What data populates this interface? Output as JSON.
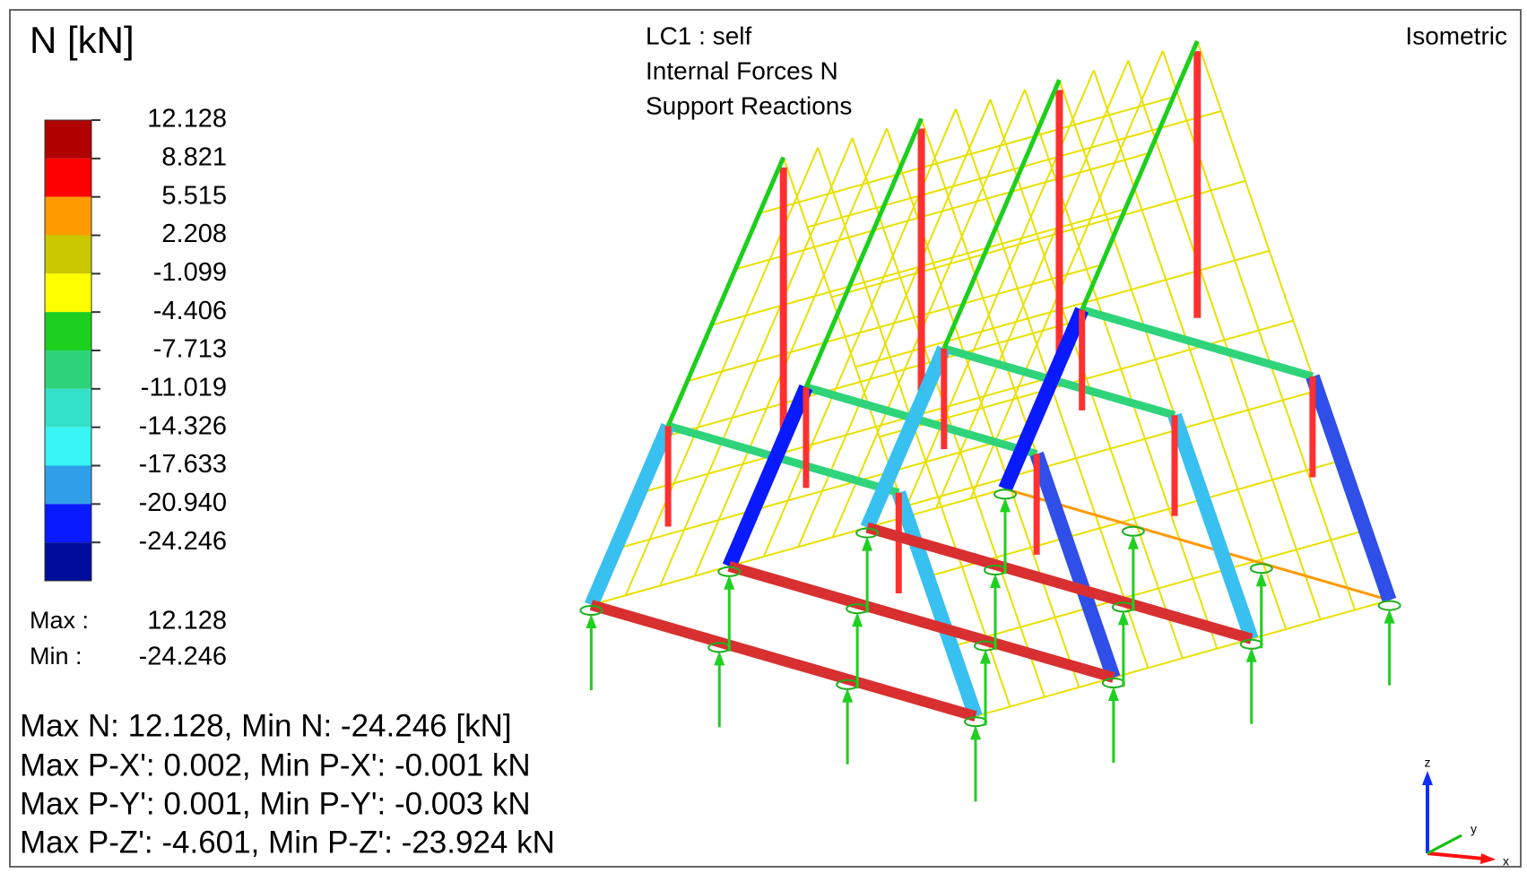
{
  "legend": {
    "title": "N [kN]",
    "values": [
      "12.128",
      "8.821",
      "5.515",
      "2.208",
      "-1.099",
      "-4.406",
      "-7.713",
      "-11.019",
      "-14.326",
      "-17.633",
      "-20.940",
      "-24.246"
    ],
    "colors": [
      "#b00000",
      "#ff0000",
      "#ff9a00",
      "#c9c800",
      "#ffff00",
      "#1ccf1c",
      "#2fd47a",
      "#33e0c8",
      "#38f4f4",
      "#2f9fe8",
      "#0a1aff",
      "#000c9a"
    ],
    "max_label": "Max :",
    "max_value": "12.128",
    "min_label": "Min :",
    "min_value": "-24.246"
  },
  "header": {
    "lines": [
      "LC1 : self",
      "Internal Forces N",
      "Support Reactions"
    ],
    "view": "Isometric"
  },
  "summary": [
    "Max N: 12.128, Min N: -24.246 [kN]",
    "Max P-X': 0.002, Min P-X': -0.001 kN",
    "Max P-Y': 0.001, Min P-Y': -0.003 kN",
    "Max P-Z': -4.601, Min P-Z': -23.924 kN"
  ],
  "axis_triad": {
    "z": "z",
    "y": "y",
    "x": "x"
  }
}
